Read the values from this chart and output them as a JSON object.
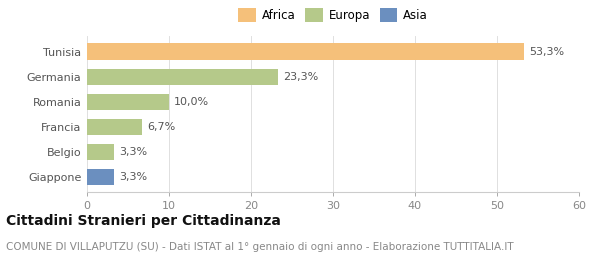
{
  "categories": [
    "Giappone",
    "Belgio",
    "Francia",
    "Romania",
    "Germania",
    "Tunisia"
  ],
  "values": [
    3.3,
    3.3,
    6.7,
    10.0,
    23.3,
    53.3
  ],
  "labels": [
    "3,3%",
    "3,3%",
    "6,7%",
    "10,0%",
    "23,3%",
    "53,3%"
  ],
  "colors": [
    "#6b8fbf",
    "#b5c98a",
    "#b5c98a",
    "#b5c98a",
    "#b5c98a",
    "#f5c07a"
  ],
  "legend_items": [
    {
      "label": "Africa",
      "color": "#f5c07a"
    },
    {
      "label": "Europa",
      "color": "#b5c98a"
    },
    {
      "label": "Asia",
      "color": "#6b8fbf"
    }
  ],
  "xlim": [
    0,
    60
  ],
  "xticks": [
    0,
    10,
    20,
    30,
    40,
    50,
    60
  ],
  "title": "Cittadini Stranieri per Cittadinanza",
  "subtitle": "COMUNE DI VILLAPUTZU (SU) - Dati ISTAT al 1° gennaio di ogni anno - Elaborazione TUTTITALIA.IT",
  "background_color": "#ffffff",
  "bar_height": 0.65,
  "title_fontsize": 10,
  "subtitle_fontsize": 7.5,
  "label_fontsize": 8,
  "tick_fontsize": 8
}
